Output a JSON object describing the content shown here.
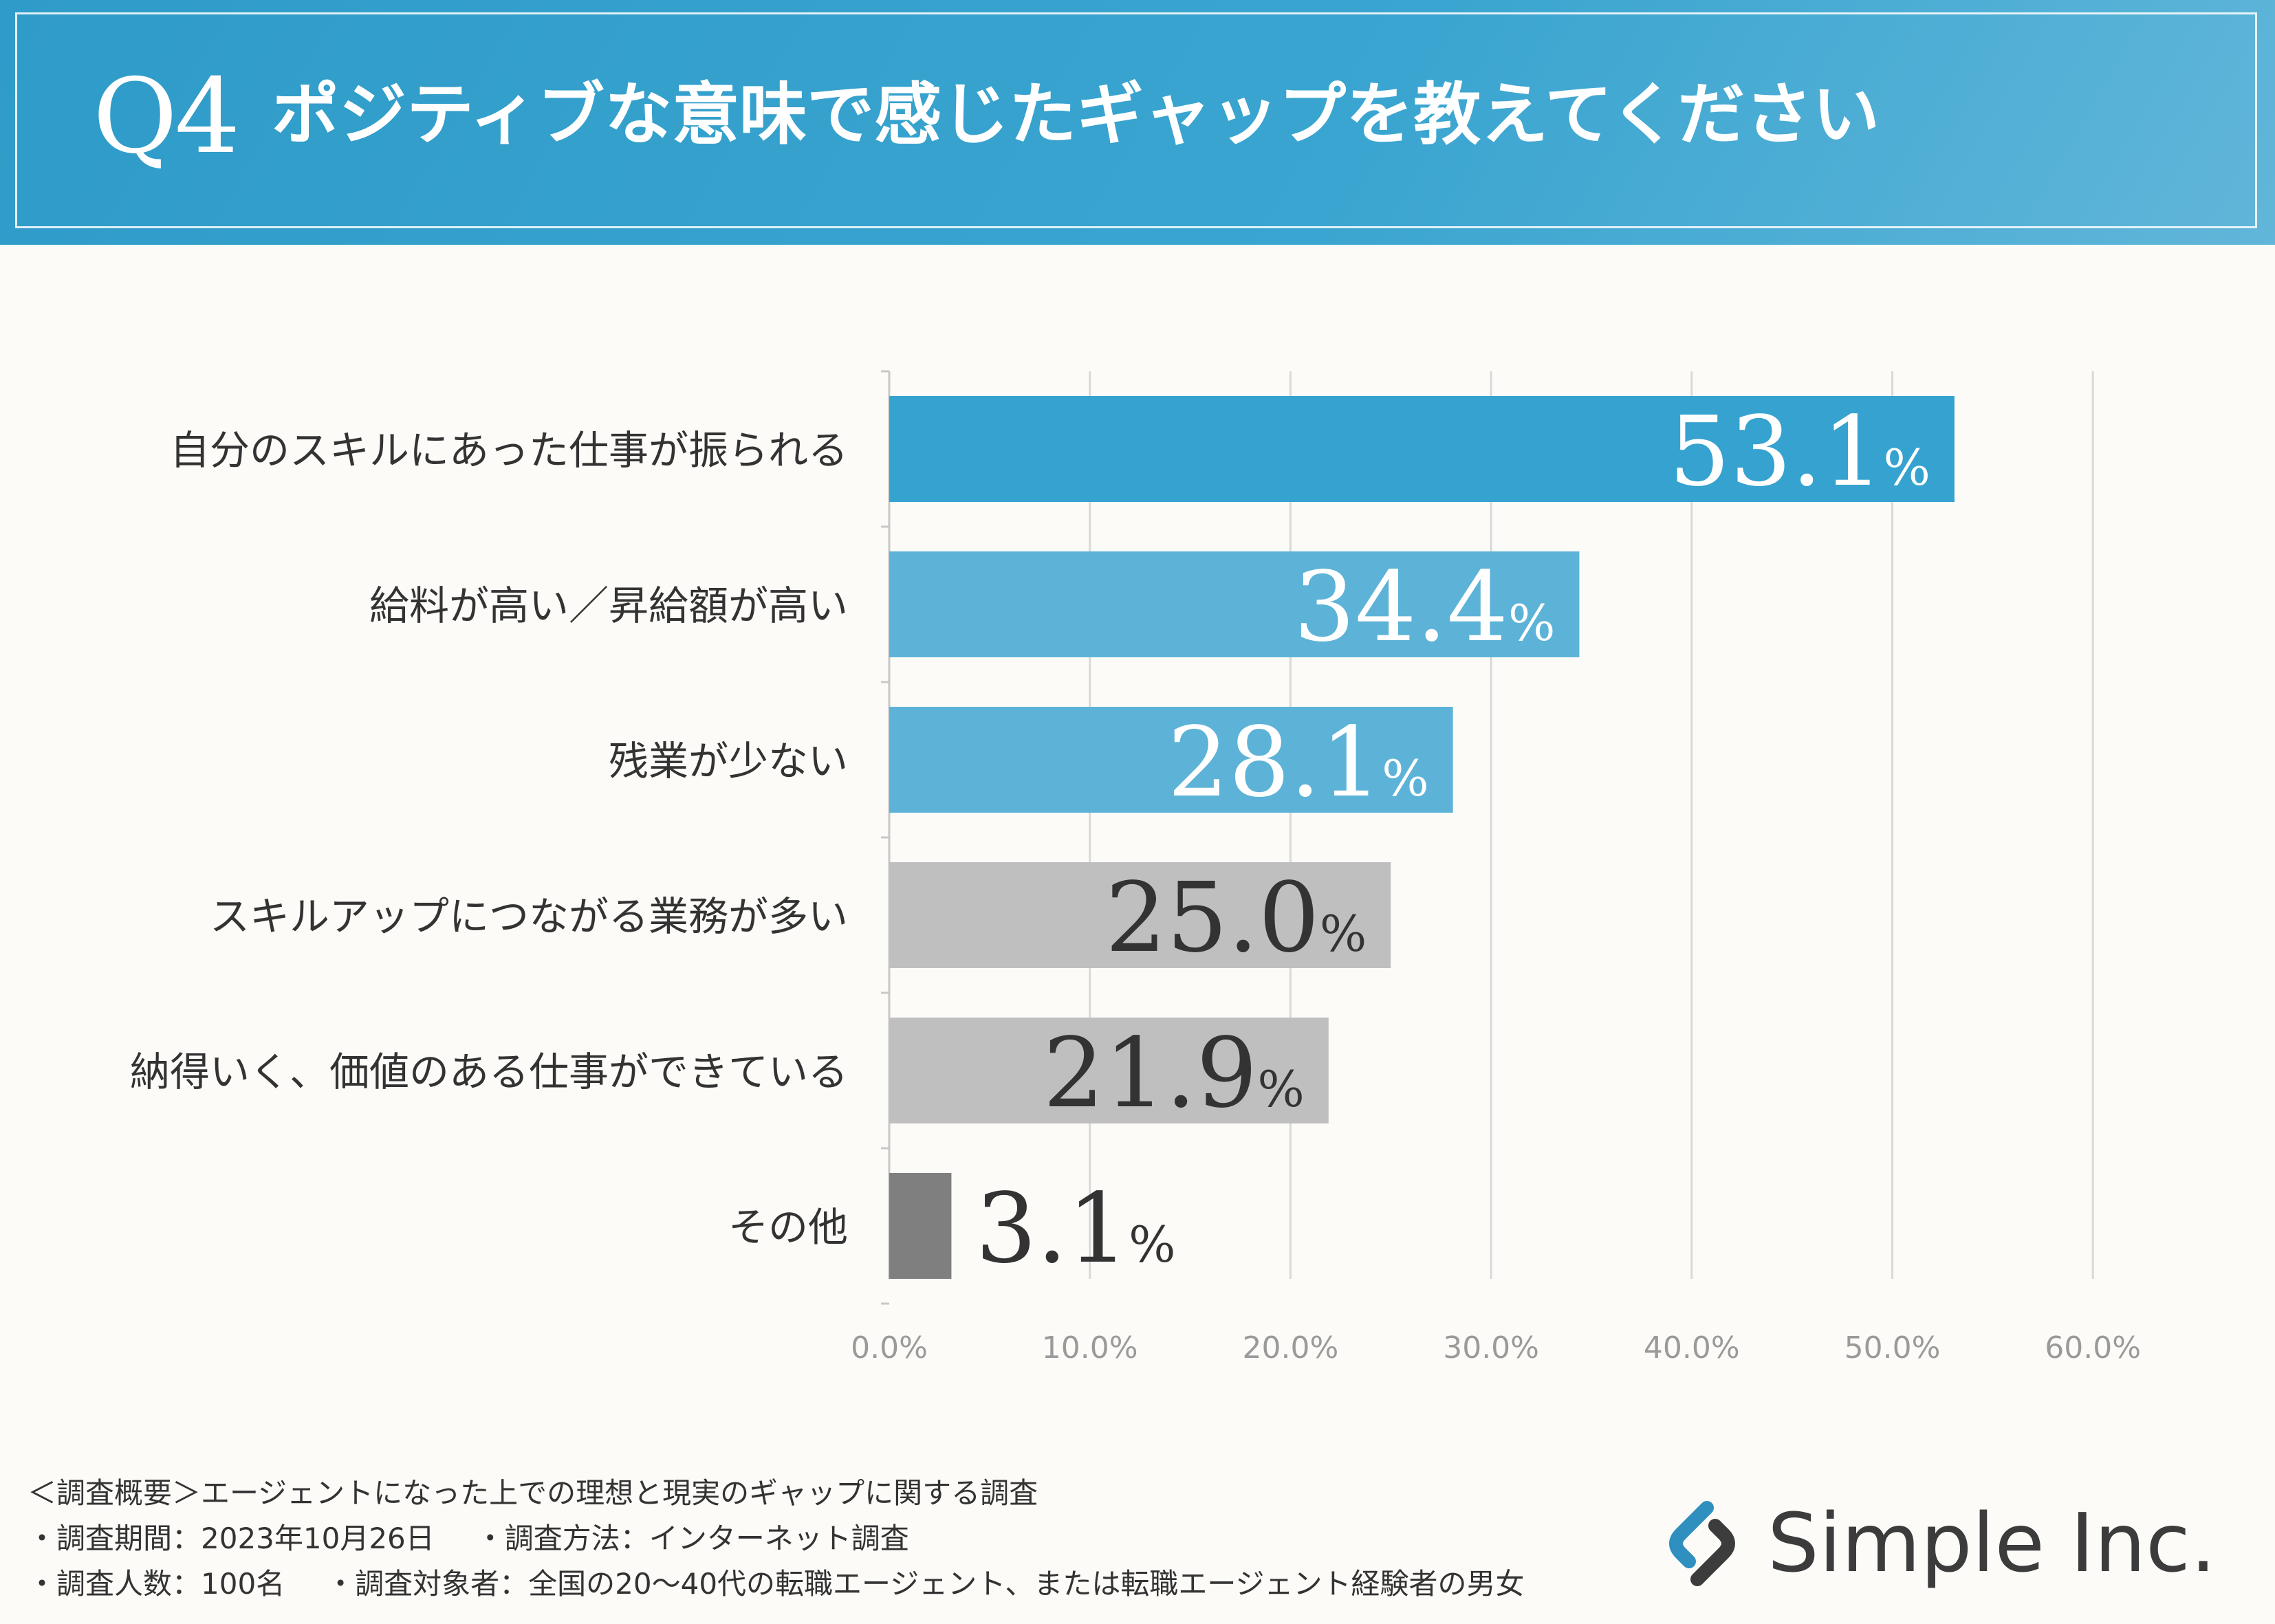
{
  "header": {
    "q_num": "Q4",
    "title": "ポジティブな意味で感じたギャップを教えてください"
  },
  "colors": {
    "dark_blue": "#35a2cf",
    "light_blue": "#5db3d7",
    "light_gray": "#bfbfbf",
    "dark_gray": "#7f7f7f"
  },
  "chart_data": {
    "type": "bar",
    "orientation": "horizontal",
    "title": "ポジティブな意味で感じたギャップを教えてください",
    "categories": [
      "自分のスキルにあった仕事が振られる",
      "給料が高い／昇給額が高い",
      "残業が少ない",
      "スキルアップにつながる業務が多い",
      "納得いく、価値のある仕事ができている",
      "その他"
    ],
    "values": [
      53.1,
      34.4,
      28.1,
      25.0,
      21.9,
      3.1
    ],
    "value_labels": [
      "53.1",
      "34.4",
      "28.1",
      "25.0",
      "21.9",
      "3.1"
    ],
    "value_unit": "%",
    "bar_colors": [
      "#35a2cf",
      "#5db3d7",
      "#5db3d7",
      "#bfbfbf",
      "#bfbfbf",
      "#7f7f7f"
    ],
    "label_colors": [
      "#ffffff",
      "#ffffff",
      "#ffffff",
      "#333333",
      "#333333",
      "#333333"
    ],
    "xlim": [
      0,
      60
    ],
    "x_ticks": [
      "0.0%",
      "10.0%",
      "20.0%",
      "30.0%",
      "40.0%",
      "50.0%",
      "60.0%"
    ],
    "grid": true
  },
  "footer": {
    "line1": "＜調査概要＞エージェントになった上での理想と現実のギャップに関する調査",
    "line2a": "・調査期間：2023年10月26日",
    "line2b": "・調査方法：インターネット調査",
    "line3a": "・調査人数：100名",
    "line3b": "・調査対象者：全国の20～40代の転職エージェント、または転職エージェント経験者の男女"
  },
  "logo": {
    "text": "Simple Inc."
  }
}
